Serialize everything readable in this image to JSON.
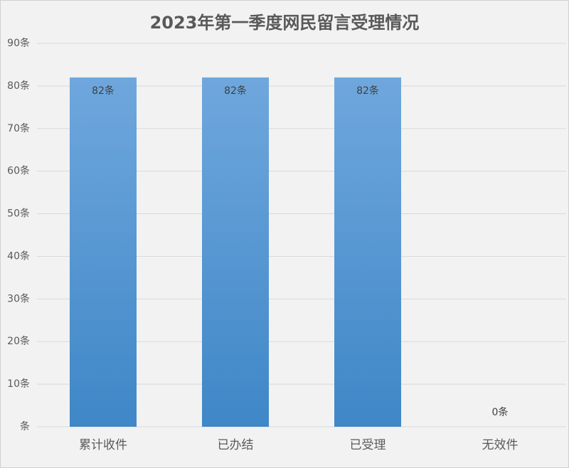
{
  "chart_data": {
    "type": "bar",
    "title": "2023年第一季度网民留言受理情况",
    "categories": [
      "累计收件",
      "已办结",
      "已受理",
      "无效件"
    ],
    "values": [
      82,
      82,
      82,
      0
    ],
    "value_labels": [
      "82条",
      "82条",
      "82条",
      "0条"
    ],
    "color": "#5b9bd5",
    "ylim": [
      0,
      90
    ],
    "yticks": [
      {
        "value": 0,
        "label": "条"
      },
      {
        "value": 10,
        "label": "10条"
      },
      {
        "value": 20,
        "label": "20条"
      },
      {
        "value": 30,
        "label": "30条"
      },
      {
        "value": 40,
        "label": "40条"
      },
      {
        "value": 50,
        "label": "50条"
      },
      {
        "value": 60,
        "label": "60条"
      },
      {
        "value": 70,
        "label": "70条"
      },
      {
        "value": 80,
        "label": "80条"
      },
      {
        "value": 90,
        "label": "90条"
      }
    ],
    "grid": true
  }
}
